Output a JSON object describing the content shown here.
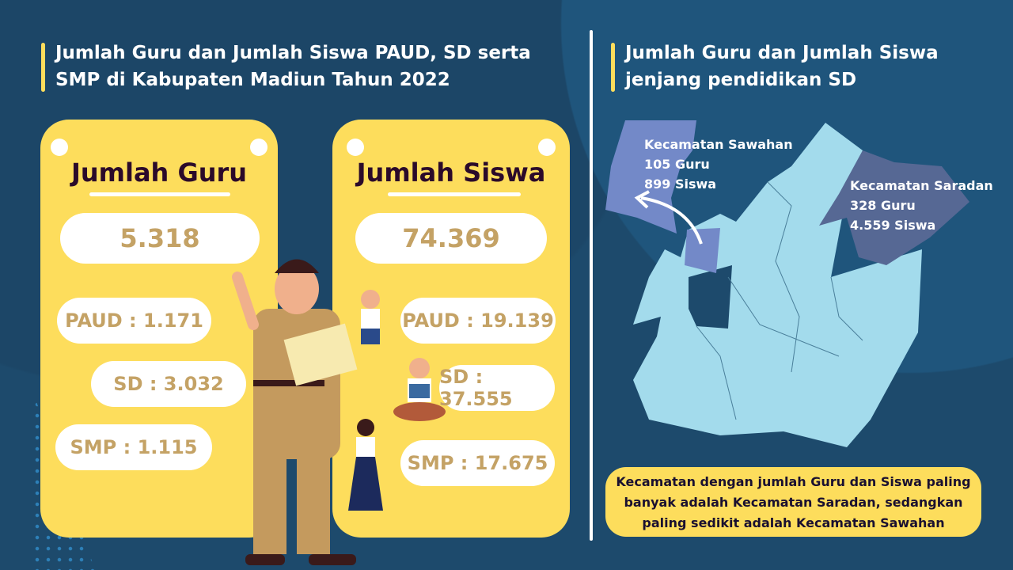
{
  "left_title": "Jumlah Guru dan Jumlah Siswa PAUD, SD serta SMP di Kabupaten Madiun Tahun 2022",
  "right_title": "Jumlah Guru dan Jumlah Siswa jenjang pendidikan SD",
  "guru": {
    "heading": "Jumlah Guru",
    "total": "5.318",
    "paud": "PAUD : 1.171",
    "sd": "SD : 3.032",
    "smp": "SMP : 1.115"
  },
  "siswa": {
    "heading": "Jumlah Siswa",
    "total": "74.369",
    "paud": "PAUD : 19.139",
    "sd": "SD : 37.555",
    "smp": "SMP : 17.675"
  },
  "map": {
    "sawahan": {
      "name": "Kecamatan Sawahan",
      "guru": "105 Guru",
      "siswa": "899 Siswa"
    },
    "saradan": {
      "name": "Kecamatan Saradan",
      "guru": "328 Guru",
      "siswa": "4.559 Siswa"
    }
  },
  "note": "Kecamatan dengan jumlah Guru dan Siswa paling banyak adalah Kecamatan Saradan, sedangkan paling sedikit adalah Kecamatan Sawahan",
  "colors": {
    "background": "#1d4a6c",
    "card": "#fddd5c",
    "number": "#c4a265",
    "map": "#a3dbec",
    "sawahan": "#7389c8",
    "saradan": "#566894"
  }
}
